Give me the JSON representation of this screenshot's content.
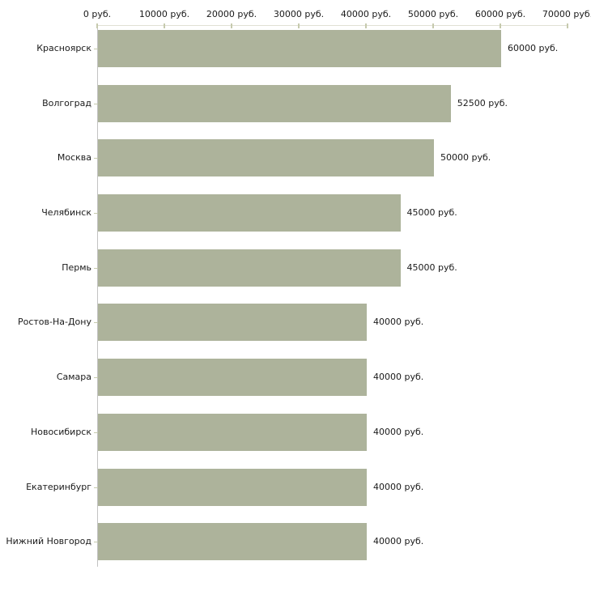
{
  "chart_data": {
    "type": "bar",
    "orientation": "horizontal",
    "categories": [
      "Красноярск",
      "Волгоград",
      "Москва",
      "Челябинск",
      "Пермь",
      "Ростов-На-Дону",
      "Самара",
      "Новосибирск",
      "Екатеринбург",
      "Нижний Новгород"
    ],
    "values": [
      60000,
      52500,
      50000,
      45000,
      45000,
      40000,
      40000,
      40000,
      40000,
      40000
    ],
    "value_labels": [
      "60000 руб.",
      "52500 руб.",
      "50000 руб.",
      "45000 руб.",
      "45000 руб.",
      "40000 руб.",
      "40000 руб.",
      "40000 руб.",
      "40000 руб.",
      "40000 руб."
    ],
    "x_axis": {
      "position": "top",
      "min": 0,
      "max": 70000,
      "ticks": [
        0,
        10000,
        20000,
        30000,
        40000,
        50000,
        60000,
        70000
      ],
      "tick_labels": [
        "0 руб.",
        "10000 руб.",
        "20000 руб.",
        "30000 руб.",
        "40000 руб.",
        "50000 руб.",
        "60000 руб.",
        "70000 руб."
      ]
    },
    "grid": false,
    "legend": null,
    "colors": {
      "bar": "#adb39b",
      "axis_line_horizontal": "#e0e0d4",
      "axis_line_vertical": "#c3c3c3",
      "tick_mark": "#c6caae",
      "text": "#1a1a1a",
      "background": "#ffffff"
    }
  }
}
